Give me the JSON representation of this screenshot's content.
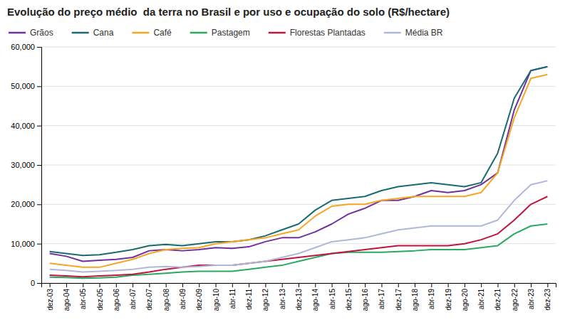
{
  "chart_data": {
    "type": "line",
    "title": "Evolução do preço médio  da terra no Brasil e por uso e ocupação do solo (R$/hectare)",
    "categories": [
      "dez-03",
      "ago-04",
      "abr-05",
      "dez-05",
      "ago-06",
      "abr-07",
      "dez-07",
      "ago-08",
      "abr-09",
      "dez-09",
      "ago-10",
      "abr-11",
      "dez-11",
      "ago-12",
      "abr-13",
      "dez-13",
      "ago-14",
      "abr-15",
      "dez-15",
      "ago-16",
      "abr-17",
      "dez-17",
      "ago-18",
      "abr-19",
      "dez-19",
      "ago-20",
      "abr-21",
      "dez-21",
      "ago-22",
      "abr-23",
      "dez-23"
    ],
    "series": [
      {
        "name": "Grãos",
        "color": "#7030a0",
        "values": [
          7500,
          6800,
          5500,
          5800,
          6000,
          6500,
          8200,
          8500,
          8200,
          8500,
          9000,
          8800,
          9200,
          10500,
          11500,
          11500,
          13000,
          15000,
          17500,
          19000,
          21000,
          21000,
          22000,
          23500,
          23000,
          23500,
          25000,
          28000,
          44000,
          54000,
          55000
        ]
      },
      {
        "name": "Cana",
        "color": "#1a6b70",
        "values": [
          8000,
          7500,
          7000,
          7200,
          7800,
          8500,
          9500,
          9800,
          9500,
          10000,
          10500,
          10500,
          11000,
          12000,
          13500,
          15000,
          18500,
          21000,
          21500,
          22000,
          23500,
          24500,
          25000,
          25500,
          25000,
          24500,
          25500,
          33000,
          47000,
          54000,
          55000
        ]
      },
      {
        "name": "Café",
        "color": "#f5a623",
        "values": [
          5000,
          4500,
          4000,
          4000,
          5000,
          6000,
          7500,
          8500,
          8800,
          9000,
          10000,
          10500,
          11000,
          11500,
          12500,
          13500,
          17000,
          19500,
          20000,
          20000,
          21000,
          21500,
          22000,
          22000,
          22000,
          22000,
          23000,
          28000,
          42000,
          52000,
          53000
        ]
      },
      {
        "name": "Pastagem",
        "color": "#2aaa60",
        "values": [
          1500,
          1400,
          1200,
          1300,
          1500,
          2000,
          2200,
          2500,
          2800,
          3000,
          3000,
          3000,
          3500,
          4000,
          4500,
          5500,
          6500,
          7500,
          7800,
          7800,
          7800,
          8000,
          8200,
          8500,
          8500,
          8500,
          9000,
          9500,
          12500,
          14500,
          15000
        ]
      },
      {
        "name": "Florestas Plantadas",
        "color": "#c0143c",
        "values": [
          2000,
          1800,
          1600,
          1800,
          2000,
          2200,
          2800,
          3500,
          4000,
          4500,
          4500,
          4500,
          5000,
          5500,
          6000,
          6500,
          7000,
          7500,
          8000,
          8500,
          9000,
          9500,
          9500,
          9500,
          9500,
          10000,
          11000,
          12500,
          16000,
          20000,
          22000
        ]
      },
      {
        "name": "Média BR",
        "color": "#b0b8d8",
        "values": [
          3500,
          3200,
          2800,
          3000,
          3200,
          3500,
          4000,
          4200,
          4000,
          4200,
          4500,
          4500,
          5000,
          5500,
          6500,
          7500,
          9000,
          10500,
          11000,
          11500,
          12500,
          13500,
          14000,
          14500,
          14500,
          14500,
          14500,
          16000,
          21000,
          25000,
          26000
        ]
      }
    ],
    "ylim": [
      0,
      60000
    ],
    "yticks": [
      0,
      {
        "value": 10000,
        "label": "10,000"
      },
      {
        "value": 20000,
        "label": "20,000"
      },
      {
        "value": 30000,
        "label": "30,000"
      },
      {
        "value": 40000,
        "label": "40,000"
      },
      {
        "value": 50000,
        "label": "50,000"
      },
      {
        "value": 60000,
        "label": "60,000"
      }
    ],
    "grid": true,
    "legend": "top"
  }
}
